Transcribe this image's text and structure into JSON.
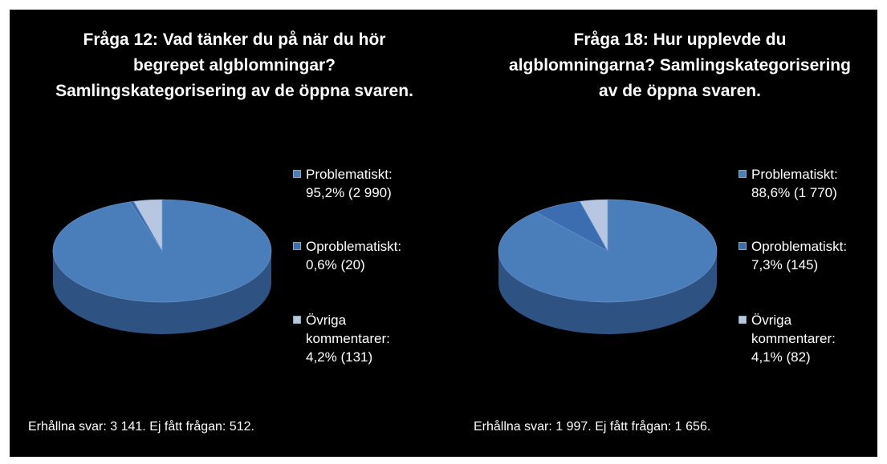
{
  "chart_data": [
    {
      "type": "pie3d",
      "title": "Fråga 12: Vad tänker du på när du hör begrepet algblomningar? Samlingskategorisering av de öppna svaren.",
      "categories": [
        "Problematiskt:",
        "Oproblematiskt:",
        "Övriga kommentarer:"
      ],
      "values": [
        95.2,
        0.6,
        4.2
      ],
      "value_labels": [
        "95,2% (2 990)",
        "0,6% (20)",
        "4,2% (131)"
      ],
      "colors": [
        "#4a7ebb",
        "#3c6db0",
        "#b7c7e2"
      ],
      "legend": "right",
      "note": "Erhållna svar: 3 141. Ej fått frågan: 512."
    },
    {
      "type": "pie3d",
      "title": "Fråga 18: Hur upplevde du algblomningarna? Samlingskategorisering av de öppna svaren.",
      "categories": [
        "Problematiskt:",
        "Oproblematiskt:",
        "Övriga kommentarer:"
      ],
      "values": [
        88.6,
        7.3,
        4.1
      ],
      "value_labels": [
        "88,6% (1 770)",
        "7,3% (145)",
        "4,1% (82)"
      ],
      "colors": [
        "#4a7ebb",
        "#3c6db0",
        "#b7c7e2"
      ],
      "legend": "right",
      "note": "Erhållna svar: 1 997. Ej fått frågan: 1 656."
    }
  ]
}
